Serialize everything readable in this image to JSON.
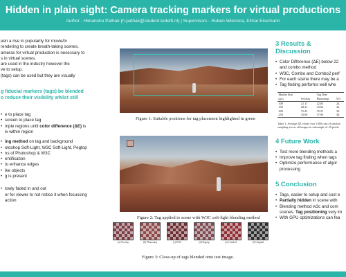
{
  "header": {
    "title": "Hidden in plain sight: Camera tracking markers for virtual productions",
    "authors": "Author - Himanshu Pathak (h.pathak@student.tudelft.nl) | Supervisors - Ruben Wiersma, Elmar Eisemann"
  },
  "left": {
    "intro": [
      "een a rise in popularity for movie/tv",
      "rendering to create breath-taking scenes.",
      "ameras for virtual production is necessary to",
      "s in virtual scenes.",
      "are used in the industry however the",
      "ve to setup.",
      "(tags) can be used but they are visually"
    ],
    "question": [
      "g fiducial markers (tags) be blended",
      "o reduce their visibility whilst still"
    ],
    "method_a": [
      "e to place tag",
      "screen to place tag",
      "mple regions until "
    ],
    "color_diff": "color difference (ΔE)",
    "method_a_after": " is",
    "method_a_end": "w within region",
    "blend_bold": "ing method",
    "blend_rest": " on tag and background",
    "method_b": [
      "otoshop Soft-Light, W3C Soft-Light, Pegtop",
      "ns of Photoshop & W3C",
      "entification",
      "to enhance edges",
      "ike objects",
      "g is present"
    ],
    "method_c": [
      "lowly faded in and out",
      "er for viewer to not notice it when focussing",
      "action"
    ]
  },
  "fig1": {
    "caption": "Figure 1: Suitable positions for tag placement highlighted in green"
  },
  "fig2": {
    "caption": "Figure 2: Tag applied to scene with W3C soft-light blending method"
  },
  "fig3": {
    "caption": "Figure 3: Close-up of tags blended onto test image.",
    "labels": [
      "(a) Overlay",
      "(b) Photoshop",
      "(c) W3C",
      "(d) Pegtop",
      "(e) Combo1",
      "(f) Original"
    ],
    "colors": [
      "#7b3f47",
      "#8c4a4a",
      "#6d2c31",
      "#7f4b52",
      "#8e2f36",
      "#2d2d2d"
    ]
  },
  "results": {
    "title": "3 Results & Discussion",
    "items": [
      [
        "Color Difference (ΔE) below 22",
        "and combo method"
      ],
      [
        "W3C, Combo and Combo2 perf"
      ],
      [
        "For each scene there may be a"
      ],
      [
        "Tag finding performs well whe"
      ]
    ],
    "table": {
      "headers_top": [
        "Marker Size",
        "Tag Dete"
      ],
      "headers": [
        "(px)",
        "Overlay",
        "Photoshop",
        "W3"
      ],
      "rows": [
        [
          "100",
          "21.11",
          "22.85",
          "24."
        ],
        [
          "150",
          "28.31",
          "33.66",
          "32."
        ],
        [
          "200",
          "31.41",
          "35.31",
          "34."
        ],
        [
          "250",
          "35.00",
          "37.99",
          "36."
        ]
      ],
      "caption": "Table 1: Average ΔE values over 1000 runs of random sampling across all images in subsample of 20 pixels"
    }
  },
  "future": {
    "title": "4 Future Work",
    "items": [
      [
        "Test more blending methods a"
      ],
      [
        "Improve tag finding when tags"
      ],
      [
        "Optimize performance of algor",
        "processing"
      ]
    ]
  },
  "conclusion": {
    "title": "5 Conclusion",
    "items": [
      [
        "Tags, easier to setup and cost e"
      ],
      [
        "Partially hidden in scene with"
      ],
      [
        "Blending method w3c and com",
        "scenes. Tag positioning very im"
      ],
      [
        "With GPU optimizations can fea"
      ]
    ],
    "partial_bold": "Partially hidden",
    "partial_rest": " in scene with",
    "blend_line1": "Blending method w3c and com",
    "blend_line2a": "scenes. ",
    "blend_bold": "Tag positioning",
    "blend_line2b": " very im"
  }
}
